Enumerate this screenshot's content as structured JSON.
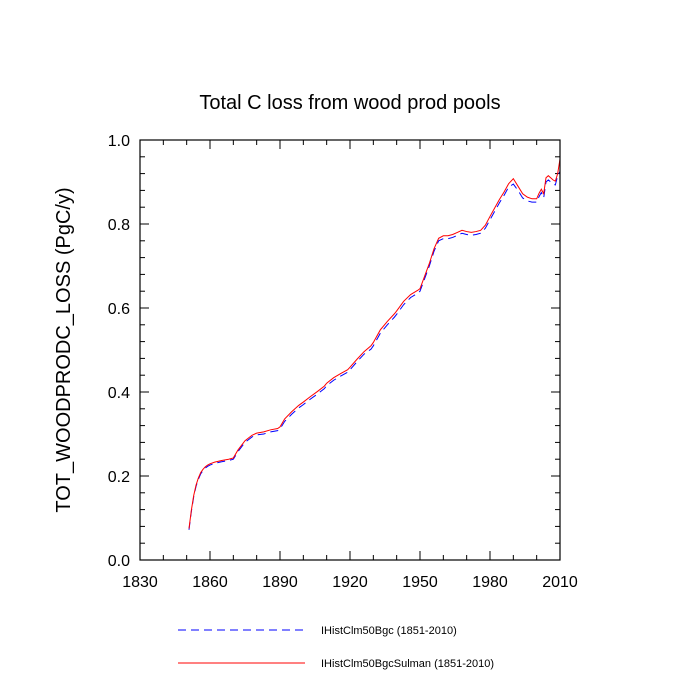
{
  "chart_data": {
    "type": "line",
    "title": "Total C loss from wood prod pools",
    "xlabel": "",
    "ylabel": "TOT_WOODPRODC_LOSS  (PgC/y)",
    "xlim": [
      1830,
      2010
    ],
    "ylim": [
      0.0,
      1.0
    ],
    "x_ticks": [
      1830,
      1860,
      1890,
      1920,
      1950,
      1980,
      2010
    ],
    "y_ticks": [
      0.0,
      0.2,
      0.4,
      0.6,
      0.8,
      1.0
    ],
    "x_tick_labels": [
      "1830",
      "1860",
      "1890",
      "1920",
      "1950",
      "1980",
      "2010"
    ],
    "y_tick_labels": [
      "0.0",
      "0.2",
      "0.4",
      "0.6",
      "0.8",
      "1.0"
    ],
    "grid": false,
    "legend_position": "bottom",
    "series": [
      {
        "name": "IHistClm50Bgc (1851-2010)",
        "color": "#0000ff",
        "style": "dashed",
        "x": [
          1851,
          1852,
          1853,
          1854,
          1855,
          1856,
          1857,
          1858,
          1859,
          1860,
          1862,
          1865,
          1868,
          1870,
          1872,
          1875,
          1878,
          1880,
          1883,
          1886,
          1889,
          1890,
          1892,
          1895,
          1898,
          1900,
          1903,
          1906,
          1909,
          1910,
          1913,
          1916,
          1919,
          1920,
          1923,
          1926,
          1929,
          1930,
          1933,
          1936,
          1939,
          1940,
          1943,
          1946,
          1949,
          1950,
          1952,
          1954,
          1956,
          1958,
          1960,
          1962,
          1964,
          1966,
          1968,
          1970,
          1972,
          1974,
          1976,
          1978,
          1980,
          1982,
          1984,
          1986,
          1988,
          1990,
          1992,
          1994,
          1996,
          1998,
          2000,
          2001,
          2002,
          2003,
          2004,
          2005,
          2006,
          2007,
          2008,
          2009,
          2010
        ],
        "values": [
          0.072,
          0.115,
          0.15,
          0.175,
          0.192,
          0.205,
          0.213,
          0.219,
          0.223,
          0.226,
          0.23,
          0.234,
          0.237,
          0.24,
          0.258,
          0.28,
          0.293,
          0.298,
          0.3,
          0.305,
          0.308,
          0.312,
          0.33,
          0.347,
          0.362,
          0.37,
          0.383,
          0.395,
          0.408,
          0.415,
          0.428,
          0.438,
          0.447,
          0.453,
          0.472,
          0.49,
          0.502,
          0.51,
          0.54,
          0.56,
          0.578,
          0.585,
          0.608,
          0.625,
          0.635,
          0.64,
          0.67,
          0.7,
          0.735,
          0.76,
          0.765,
          0.765,
          0.768,
          0.773,
          0.778,
          0.775,
          0.773,
          0.775,
          0.778,
          0.79,
          0.81,
          0.83,
          0.85,
          0.868,
          0.888,
          0.895,
          0.88,
          0.862,
          0.855,
          0.852,
          0.852,
          0.865,
          0.875,
          0.862,
          0.9,
          0.905,
          0.9,
          0.895,
          0.893,
          0.915,
          0.925
        ]
      },
      {
        "name": "IHistClm50BgcSulman (1851-2010)",
        "color": "#ff0000",
        "style": "solid",
        "x": [
          1851,
          1852,
          1853,
          1854,
          1855,
          1856,
          1857,
          1858,
          1859,
          1860,
          1862,
          1865,
          1868,
          1870,
          1872,
          1875,
          1878,
          1880,
          1883,
          1886,
          1889,
          1890,
          1892,
          1895,
          1898,
          1900,
          1903,
          1906,
          1909,
          1910,
          1913,
          1916,
          1919,
          1920,
          1923,
          1926,
          1929,
          1930,
          1933,
          1936,
          1939,
          1940,
          1943,
          1946,
          1949,
          1950,
          1952,
          1954,
          1956,
          1958,
          1960,
          1962,
          1964,
          1966,
          1968,
          1970,
          1972,
          1974,
          1976,
          1978,
          1980,
          1982,
          1984,
          1986,
          1988,
          1990,
          1992,
          1994,
          1996,
          1998,
          2000,
          2001,
          2002,
          2003,
          2004,
          2005,
          2006,
          2007,
          2008,
          2009,
          2010
        ],
        "values": [
          0.075,
          0.118,
          0.153,
          0.178,
          0.195,
          0.208,
          0.216,
          0.222,
          0.226,
          0.229,
          0.233,
          0.237,
          0.24,
          0.243,
          0.262,
          0.284,
          0.297,
          0.302,
          0.305,
          0.31,
          0.313,
          0.317,
          0.336,
          0.353,
          0.368,
          0.376,
          0.389,
          0.401,
          0.414,
          0.421,
          0.434,
          0.444,
          0.453,
          0.459,
          0.478,
          0.496,
          0.51,
          0.518,
          0.548,
          0.568,
          0.586,
          0.593,
          0.616,
          0.632,
          0.642,
          0.646,
          0.676,
          0.706,
          0.741,
          0.766,
          0.772,
          0.772,
          0.775,
          0.78,
          0.785,
          0.782,
          0.78,
          0.782,
          0.785,
          0.797,
          0.818,
          0.838,
          0.858,
          0.876,
          0.896,
          0.908,
          0.89,
          0.872,
          0.864,
          0.86,
          0.86,
          0.873,
          0.883,
          0.872,
          0.91,
          0.915,
          0.91,
          0.905,
          0.902,
          0.92,
          0.955
        ]
      }
    ]
  }
}
